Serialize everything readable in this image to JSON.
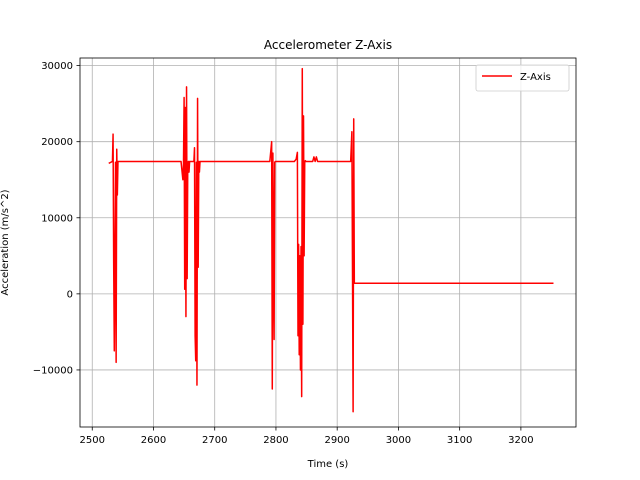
{
  "chart_data": {
    "type": "line",
    "title": "Accelerometer Z-Axis",
    "xlabel": "Time (s)",
    "ylabel": "Acceleration (m/s^2)",
    "xlim": [
      2480,
      3290
    ],
    "ylim": [
      -17500,
      31000
    ],
    "xticks": [
      2500,
      2600,
      2700,
      2800,
      2900,
      3000,
      3100,
      3200
    ],
    "yticks": [
      -10000,
      0,
      10000,
      20000,
      30000
    ],
    "xtick_labels": [
      "2500",
      "2600",
      "2700",
      "2800",
      "2900",
      "3000",
      "3100",
      "3200"
    ],
    "ytick_labels": [
      "−10000",
      "0",
      "10000",
      "20000",
      "30000"
    ],
    "grid": true,
    "legend_position": "top-right",
    "series": [
      {
        "name": "Z-Axis",
        "color": "#ff0000",
        "x": [
          2528,
          2533,
          2534,
          2535,
          2536,
          2537,
          2538,
          2539,
          2540,
          2541,
          2542,
          2543,
          2544,
          2600,
          2645,
          2648,
          2649,
          2650,
          2651,
          2652,
          2653,
          2654,
          2655,
          2656,
          2657,
          2658,
          2659,
          2662,
          2666,
          2667,
          2668,
          2669,
          2670,
          2671,
          2672,
          2673,
          2674,
          2675,
          2676,
          2720,
          2790,
          2793,
          2794,
          2795,
          2796,
          2797,
          2798,
          2799,
          2830,
          2833,
          2835,
          2836,
          2837,
          2838,
          2839,
          2840,
          2841,
          2842,
          2843,
          2844,
          2845,
          2846,
          2847,
          2848,
          2849,
          2850,
          2860,
          2862,
          2864,
          2866,
          2868,
          2900,
          2922,
          2924,
          2926,
          2927,
          2928,
          2929,
          2930,
          3000,
          3100,
          3200,
          3252
        ],
        "y": [
          17200,
          17400,
          21000,
          4000,
          -7500,
          4700,
          17300,
          -9000,
          19000,
          13000,
          17400,
          17400,
          17400,
          17400,
          17400,
          15000,
          17000,
          25800,
          600,
          24500,
          -3000,
          27200,
          2000,
          17300,
          17400,
          16000,
          17400,
          17400,
          17400,
          19200,
          -5500,
          -8800,
          17300,
          -12000,
          25700,
          3500,
          17400,
          16000,
          17400,
          17400,
          17400,
          20000,
          -12500,
          18500,
          5000,
          -6000,
          17300,
          17400,
          17400,
          17700,
          18600,
          -5500,
          6500,
          -8000,
          5000,
          -10000,
          6200,
          -13500,
          29600,
          -4000,
          23400,
          5000,
          17300,
          17500,
          17400,
          17400,
          17400,
          18000,
          17400,
          18000,
          17400,
          17400,
          17400,
          21300,
          -15500,
          23000,
          1400,
          1400,
          1400,
          1400,
          1400,
          1400,
          1400
        ]
      }
    ]
  }
}
